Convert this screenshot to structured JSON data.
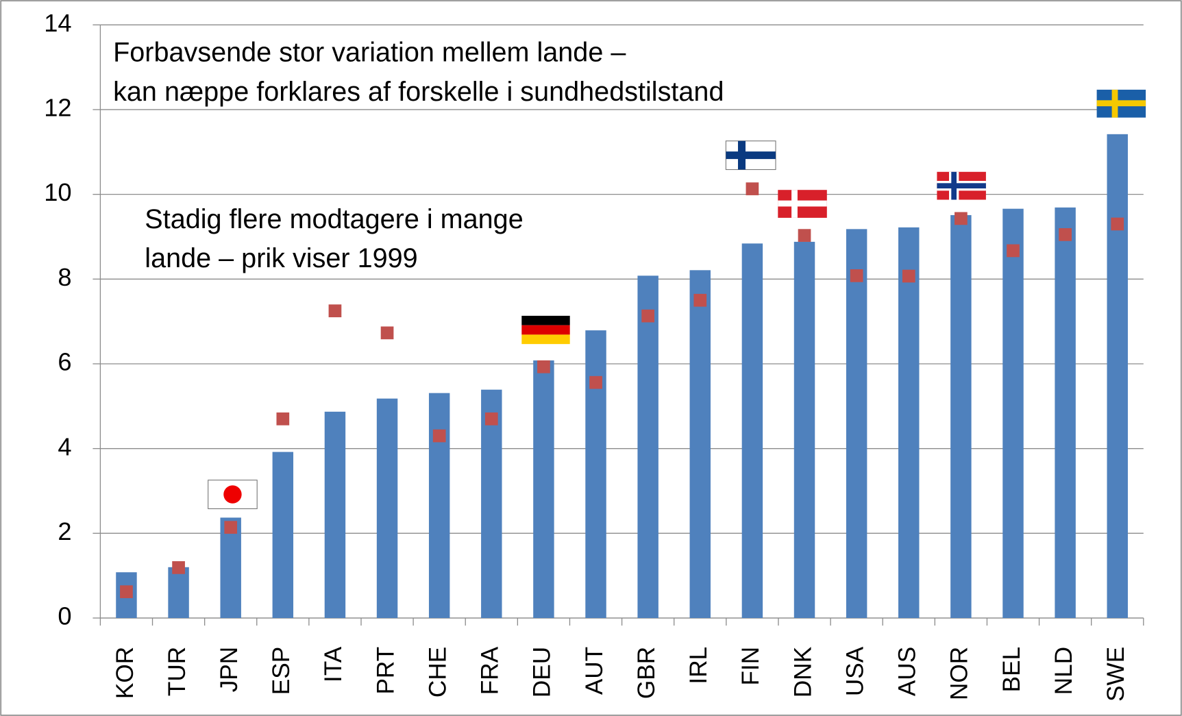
{
  "chart_data": {
    "type": "bar",
    "annotations": [
      [
        "Forbavsende stor variation mellem lande –",
        "kan næppe forklares af forskelle i sundhedstilstand"
      ],
      [
        "Stadig flere modtagere i mange",
        "lande – prik viser 1999"
      ]
    ],
    "categories": [
      "KOR",
      "TUR",
      "JPN",
      "ESP",
      "ITA",
      "PRT",
      "CHE",
      "FRA",
      "DEU",
      "AUT",
      "GBR",
      "IRL",
      "FIN",
      "DNK",
      "USA",
      "AUS",
      "NOR",
      "BEL",
      "NLD",
      "SWE"
    ],
    "series": [
      {
        "type": "bar",
        "color": "#4f81bd",
        "values": [
          1.08,
          1.2,
          2.37,
          3.92,
          4.87,
          5.18,
          5.31,
          5.39,
          6.08,
          6.79,
          8.08,
          8.21,
          8.84,
          8.88,
          9.18,
          9.22,
          9.51,
          9.66,
          9.69,
          11.42
        ]
      },
      {
        "type": "marker",
        "color": "#c0504d",
        "values": [
          0.62,
          1.19,
          2.14,
          4.7,
          7.25,
          6.73,
          4.3,
          4.7,
          5.93,
          5.56,
          7.13,
          7.5,
          10.13,
          9.03,
          8.08,
          8.07,
          9.43,
          8.67,
          9.05,
          9.3
        ]
      }
    ],
    "ylim": [
      0,
      14
    ],
    "yticks": [
      0,
      2,
      4,
      6,
      8,
      10,
      12,
      14
    ],
    "grid": true
  }
}
